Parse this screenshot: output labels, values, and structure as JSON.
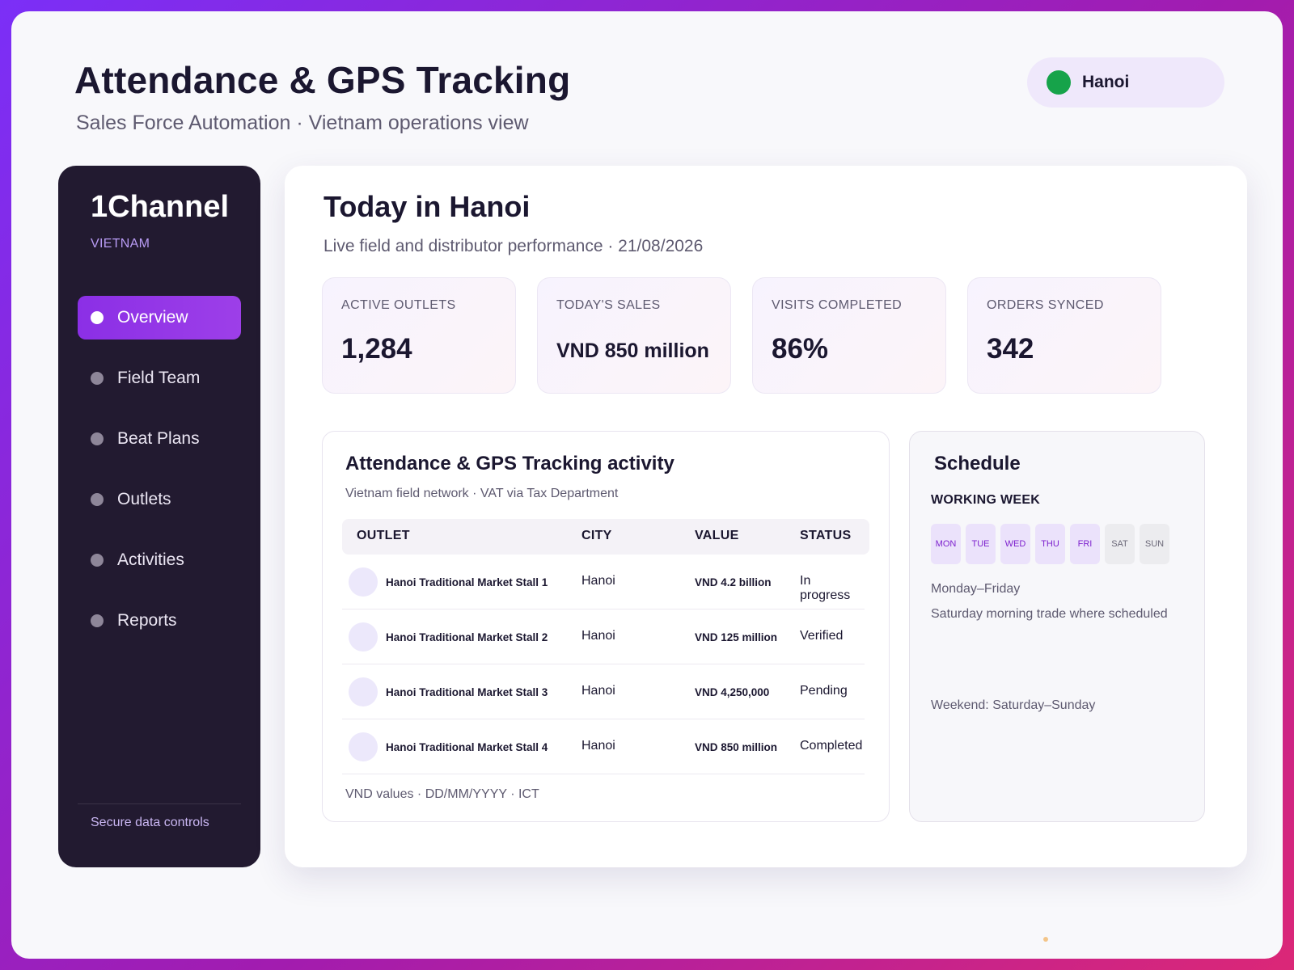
{
  "header": {
    "title": "Attendance & GPS Tracking",
    "subtitle": "Sales Force Automation · Vietnam operations view",
    "city": "Hanoi",
    "city_dot_color": "#16a34a"
  },
  "sidebar": {
    "brand": "1Channel",
    "region": "VIETNAM",
    "items": [
      {
        "label": "Overview",
        "active": true
      },
      {
        "label": "Field Team",
        "active": false
      },
      {
        "label": "Beat Plans",
        "active": false
      },
      {
        "label": "Outlets",
        "active": false
      },
      {
        "label": "Activities",
        "active": false
      },
      {
        "label": "Reports",
        "active": false
      }
    ],
    "footer": "Secure data controls"
  },
  "main": {
    "title": "Today in Hanoi",
    "subtitle": "Live field and distributor performance · 21/08/2026",
    "kpis": [
      {
        "label": "ACTIVE OUTLETS",
        "value": "1,284"
      },
      {
        "label": "TODAY'S SALES",
        "value": "VND 850 million"
      },
      {
        "label": "VISITS COMPLETED",
        "value": "86%"
      },
      {
        "label": "ORDERS SYNCED",
        "value": "342"
      }
    ]
  },
  "activity": {
    "title": "Attendance & GPS Tracking activity",
    "subtitle": "Vietnam field network · VAT via Tax Department",
    "columns": [
      "OUTLET",
      "CITY",
      "VALUE",
      "STATUS"
    ],
    "rows": [
      {
        "outlet": "Hanoi Traditional Market Stall 1",
        "city": "Hanoi",
        "value": "VND 4.2 billion",
        "status": "In progress"
      },
      {
        "outlet": "Hanoi Traditional Market Stall 2",
        "city": "Hanoi",
        "value": "VND 125 million",
        "status": "Verified"
      },
      {
        "outlet": "Hanoi Traditional Market Stall 3",
        "city": "Hanoi",
        "value": "VND 4,250,000",
        "status": "Pending"
      },
      {
        "outlet": "Hanoi Traditional Market Stall 4",
        "city": "Hanoi",
        "value": "VND 850 million",
        "status": "Completed"
      }
    ],
    "footer": "VND values · DD/MM/YYYY · ICT"
  },
  "schedule": {
    "title": "Schedule",
    "subtitle": "WORKING WEEK",
    "days": [
      {
        "label": "MON",
        "working": true
      },
      {
        "label": "TUE",
        "working": true
      },
      {
        "label": "WED",
        "working": true
      },
      {
        "label": "THU",
        "working": true
      },
      {
        "label": "FRI",
        "working": true
      },
      {
        "label": "SAT",
        "working": false
      },
      {
        "label": "SUN",
        "working": false
      }
    ],
    "lines": [
      "Monday–Friday",
      "Saturday morning trade where scheduled",
      "Weekend: Saturday–Sunday"
    ]
  }
}
